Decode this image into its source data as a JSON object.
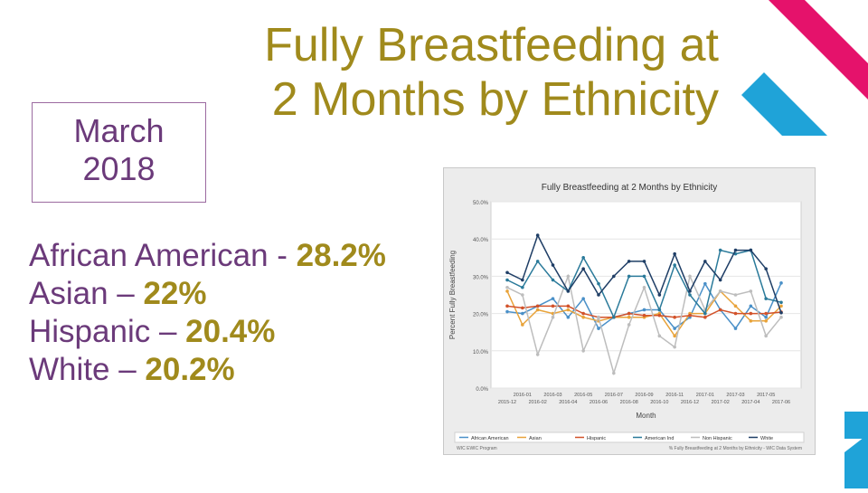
{
  "slide": {
    "title_line1": "Fully Breastfeeding at",
    "title_line2": "2 Months by Ethnicity",
    "date_line1": "March",
    "date_line2": "2018",
    "stats": [
      {
        "label": "African American - ",
        "value": "28.2%"
      },
      {
        "label": "Asian – ",
        "value": "22%"
      },
      {
        "label": "Hispanic – ",
        "value": "20.4%"
      },
      {
        "label": "White – ",
        "value": "20.2%"
      }
    ]
  },
  "chart_data": {
    "type": "line",
    "title": "Fully Breastfeeding at 2 Months by Ethnicity",
    "xlabel": "Month",
    "ylabel": "Percent Fully Breastfeeding",
    "ylim": [
      0,
      50
    ],
    "yticks": [
      "0.0%",
      "10.0%",
      "20.0%",
      "30.0%",
      "40.0%",
      "50.0%"
    ],
    "ytick_values": [
      0,
      10,
      20,
      30,
      40,
      50
    ],
    "xtick_labels_top": [
      "2016-01",
      "2016-03",
      "2016-05",
      "2016-07",
      "2016-09",
      "2016-11",
      "2017-01",
      "2017-03",
      "2017-05"
    ],
    "xtick_labels_bottom": [
      "2015-12",
      "2016-02",
      "2016-04",
      "2016-06",
      "2016-08",
      "2016-10",
      "2016-12",
      "2017-02",
      "2017-04",
      "2017-06"
    ],
    "n_points": 19,
    "series": [
      {
        "name": "African American",
        "color": "#4a90c8",
        "values": [
          20.5,
          20,
          22,
          24,
          19,
          24,
          16,
          19,
          20,
          21,
          21,
          16,
          19,
          28,
          21,
          16,
          22,
          19,
          28.2
        ]
      },
      {
        "name": "Asian",
        "color": "#e8a33a",
        "values": [
          26,
          17,
          21,
          20,
          21,
          19,
          18,
          19,
          19,
          19,
          20,
          14,
          20,
          20,
          26,
          22,
          18,
          18,
          22
        ]
      },
      {
        "name": "Hispanic",
        "color": "#d2522a",
        "values": [
          22,
          21.5,
          22,
          22,
          22,
          20,
          19,
          19,
          20,
          19.5,
          19.5,
          19,
          19.5,
          19,
          21,
          20,
          20,
          20,
          20.4
        ]
      },
      {
        "name": "Non Hispanic",
        "color": "#bdbdbd",
        "values": [
          27,
          25,
          9,
          19,
          30,
          10,
          19,
          4,
          17,
          27,
          14,
          11,
          30,
          21,
          26,
          25,
          26,
          14,
          19
        ]
      },
      {
        "name": "American Ind",
        "color": "#2a7a9a",
        "values": [
          29,
          27,
          34,
          29,
          26,
          35,
          28,
          19,
          30,
          30,
          21,
          33,
          25,
          20,
          37,
          36,
          37,
          24,
          23
        ]
      },
      {
        "name": "White",
        "color": "#1f3e66",
        "values": [
          31,
          29,
          41,
          33,
          26,
          32,
          25,
          30,
          34,
          34,
          25,
          36,
          26,
          34,
          29,
          37,
          37,
          32,
          20.2
        ]
      }
    ],
    "legend": [
      "African American",
      "Asian",
      "Hispanic",
      "American Ind",
      "Non Hispanic",
      "White"
    ],
    "footer_left": "WIC EWIC Program",
    "footer_right": "% Fully Breastfeeding at 2 Months by Ethnicity - WIC Data System"
  }
}
